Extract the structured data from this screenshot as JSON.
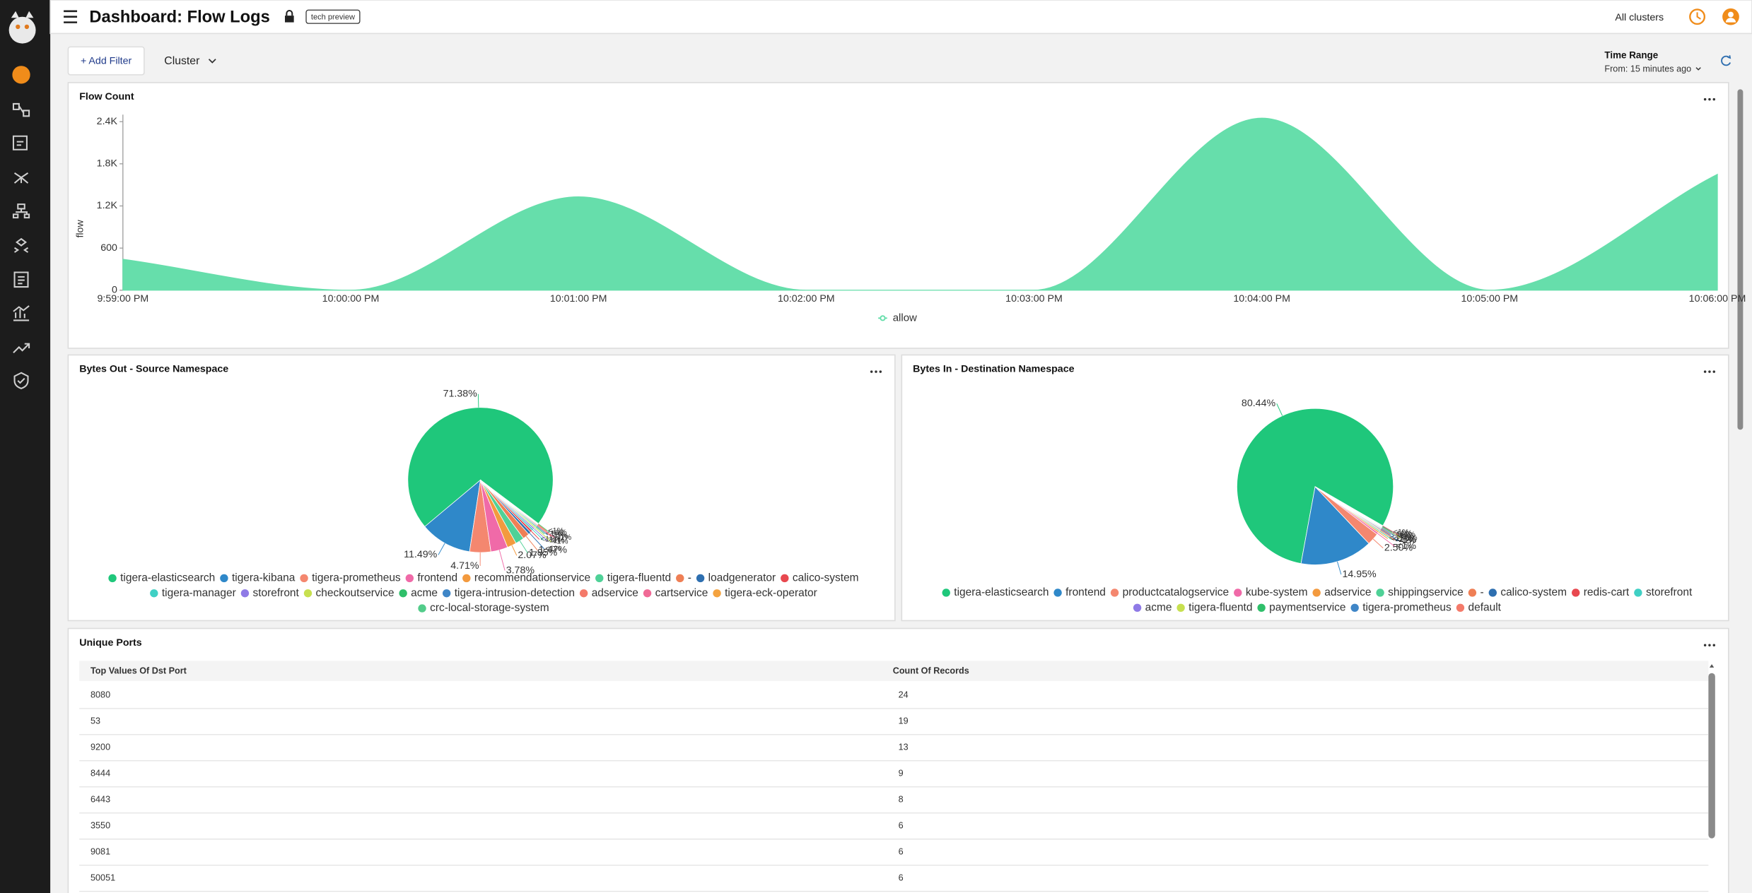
{
  "header": {
    "title": "Dashboard: Flow Logs",
    "badge": "tech preview",
    "cluster_selector": "All clusters"
  },
  "toolbar": {
    "add_filter": "+ Add Filter",
    "cluster": "Cluster",
    "time_range_label": "Time Range",
    "time_range_value": "From: 15 minutes ago"
  },
  "flow_count": {
    "title": "Flow Count",
    "chart_data": {
      "type": "area",
      "x": [
        "9:59:00 PM",
        "10:00:00 PM",
        "10:01:00 PM",
        "10:02:00 PM",
        "10:03:00 PM",
        "10:04:00 PM",
        "10:05:00 PM",
        "10:06:00 PM"
      ],
      "series": [
        {
          "name": "allow",
          "color": "#66deab",
          "values": [
            440,
            0,
            1330,
            0,
            0,
            2450,
            0,
            1650
          ]
        }
      ],
      "ylabel": "flow",
      "ylim": [
        0,
        2500
      ],
      "yticks": [
        0,
        600,
        {
          "value": 1200,
          "label": "1.2K"
        },
        {
          "value": 1800,
          "label": "1.8K"
        },
        {
          "value": 2400,
          "label": "2.4K"
        }
      ]
    }
  },
  "bytes_out": {
    "title": "Bytes Out - Source Namespace",
    "chart_data": {
      "type": "pie",
      "categories": [
        "tigera-elasticsearch",
        "tigera-kibana",
        "tigera-prometheus",
        "frontend",
        "recommendationservice",
        "tigera-fluentd",
        "-",
        "loadgenerator",
        "calico-system",
        "tigera-manager",
        "storefront",
        "checkoutservice",
        "acme",
        "tigera-intrusion-detection",
        "adservice",
        "cartservice",
        "tigera-eck-operator",
        "crc-local-storage-system"
      ],
      "values": [
        71.38,
        11.49,
        4.71,
        3.78,
        2.07,
        1.95,
        1.47,
        0.6,
        0.5,
        0.4,
        0.35,
        0.3,
        0.25,
        0.2,
        0.2,
        0.15,
        0.1,
        0.1
      ],
      "value_labels": [
        "71.38%",
        "11.49%",
        "4.71%",
        "3.78%",
        "2.07%",
        "1.95%",
        "1.47%",
        "<1%",
        "<1%",
        "<1%",
        "<1%",
        "<1%",
        "<1%",
        "<1%",
        "<1%",
        "<1%",
        "<1%",
        "<1%"
      ],
      "colors": [
        "#1fc77b",
        "#2f88c9",
        "#f4876f",
        "#f06aa8",
        "#f39a3e",
        "#4fd197",
        "#ef7f55",
        "#2e6fb0",
        "#e8484f",
        "#3fd0c4",
        "#8f7ae6",
        "#c7e04f",
        "#2fbf6a",
        "#3f86c7",
        "#f47a6a",
        "#f06a96",
        "#f4a340",
        "#52cc8a"
      ]
    }
  },
  "bytes_in": {
    "title": "Bytes In - Destination Namespace",
    "chart_data": {
      "type": "pie",
      "categories": [
        "tigera-elasticsearch",
        "frontend",
        "productcatalogservice",
        "kube-system",
        "adservice",
        "shippingservice",
        "-",
        "calico-system",
        "redis-cart",
        "storefront",
        "acme",
        "tigera-fluentd",
        "paymentservice",
        "tigera-prometheus",
        "default"
      ],
      "values": [
        80.44,
        14.95,
        2.5,
        0.4,
        0.3,
        0.25,
        0.2,
        0.2,
        0.15,
        0.15,
        0.12,
        0.1,
        0.1,
        0.08,
        0.06
      ],
      "value_labels": [
        "80.44%",
        "14.95%",
        "2.50%",
        "<1%",
        "<1%",
        "<1%",
        "<1%",
        "<1%",
        "<1%",
        "<1%",
        "<1%",
        "<1%",
        "<1%",
        "<1%",
        "<1%"
      ],
      "colors": [
        "#1fc77b",
        "#2f88c9",
        "#f4876f",
        "#f06aa8",
        "#f39a3e",
        "#4fd197",
        "#ef7f55",
        "#2e6fb0",
        "#e8484f",
        "#3fd0c4",
        "#8f7ae6",
        "#c7e04f",
        "#2fbf6a",
        "#3f86c7",
        "#f47a6a"
      ]
    }
  },
  "unique_ports": {
    "title": "Unique Ports",
    "columns": [
      "Top Values Of Dst Port",
      "Count Of Records"
    ],
    "rows": [
      [
        8080,
        24
      ],
      [
        53,
        19
      ],
      [
        9200,
        13
      ],
      [
        8444,
        9
      ],
      [
        6443,
        8
      ],
      [
        3550,
        6
      ],
      [
        9081,
        6
      ],
      [
        50051,
        6
      ]
    ]
  }
}
